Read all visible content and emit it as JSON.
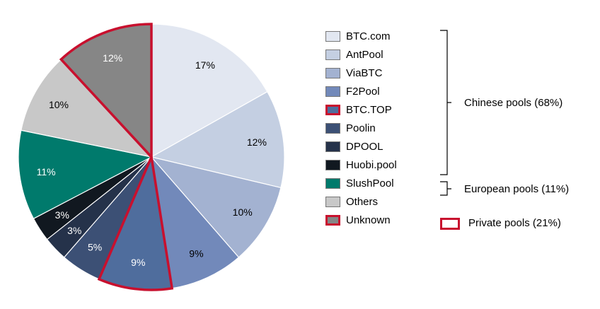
{
  "chart_data": {
    "type": "pie",
    "slices": [
      {
        "label": "BTC.com",
        "value": 17,
        "display": "17%",
        "color": "#e2e7f1",
        "text_color": "#000000",
        "highlight": false
      },
      {
        "label": "AntPool",
        "value": 12,
        "display": "12%",
        "color": "#c4cfe2",
        "text_color": "#000000",
        "highlight": false
      },
      {
        "label": "ViaBTC",
        "value": 10,
        "display": "10%",
        "color": "#a3b2d1",
        "text_color": "#000000",
        "highlight": false
      },
      {
        "label": "F2Pool",
        "value": 9,
        "display": "9%",
        "color": "#7289ba",
        "text_color": "#000000",
        "highlight": false
      },
      {
        "label": "BTC.TOP",
        "value": 9,
        "display": "9%",
        "color": "#4f6d9d",
        "text_color": "#ffffff",
        "highlight": true
      },
      {
        "label": "Poolin",
        "value": 5,
        "display": "5%",
        "color": "#3c5075",
        "text_color": "#ffffff",
        "highlight": false
      },
      {
        "label": "DPOOL",
        "value": 3,
        "display": "3%",
        "color": "#25324a",
        "text_color": "#ffffff",
        "highlight": false
      },
      {
        "label": "Huobi.pool",
        "value": 3,
        "display": "3%",
        "color": "#111820",
        "text_color": "#ffffff",
        "highlight": false
      },
      {
        "label": "SlushPool",
        "value": 11,
        "display": "11%",
        "color": "#007a6c",
        "text_color": "#ffffff",
        "highlight": false
      },
      {
        "label": "Others",
        "value": 10,
        "display": "10%",
        "color": "#c8c8c8",
        "text_color": "#000000",
        "highlight": false
      },
      {
        "label": "Unknown",
        "value": 12,
        "display": "12%",
        "color": "#868686",
        "text_color": "#ffffff",
        "highlight": true
      }
    ],
    "start_angle": "12 o'clock",
    "direction": "clockwise",
    "legend_position": "right",
    "highlight_color": "#c8102e",
    "groups": [
      {
        "label": "Chinese pools (68%)",
        "members": [
          "BTC.com",
          "AntPool",
          "ViaBTC",
          "F2Pool",
          "BTC.TOP",
          "Poolin",
          "DPOOL",
          "Huobi.pool"
        ]
      },
      {
        "label": "European pools (11%)",
        "members": [
          "SlushPool"
        ]
      }
    ],
    "private_legend": {
      "label": "Private pools (21%)",
      "members": [
        "BTC.TOP",
        "Unknown"
      ]
    }
  }
}
